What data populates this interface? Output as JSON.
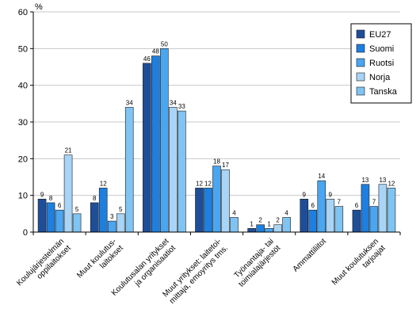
{
  "chart_data": {
    "type": "bar",
    "ylabel": "%",
    "ylim": [
      0,
      60
    ],
    "yticks": [
      0,
      10,
      20,
      30,
      40,
      50,
      60
    ],
    "grid": true,
    "legend_position": "top-right",
    "categories": [
      [
        "Koulujärjestelmän",
        "oppilaitokset"
      ],
      [
        "Muut koulutus-",
        "laitokset"
      ],
      [
        "Koulutusalan yritykset",
        "ja organisaatiot"
      ],
      [
        "Muut yritykset: laitetoi-",
        "mittaja, emoyritys tms."
      ],
      [
        "Työnantaja- tai",
        "toimialajärjestöt"
      ],
      [
        "Ammattiliitot"
      ],
      [
        "Muut koulutuksen",
        "tarjoajat"
      ]
    ],
    "series": [
      {
        "name": "EU27",
        "color": "#1f4e99",
        "values": [
          9,
          8,
          46,
          12,
          1,
          9,
          6
        ]
      },
      {
        "name": "Suomi",
        "color": "#1d7fe0",
        "values": [
          8,
          12,
          48,
          12,
          2,
          6,
          13
        ]
      },
      {
        "name": "Ruotsi",
        "color": "#4aa6f0",
        "values": [
          6,
          3,
          50,
          18,
          1,
          14,
          7
        ]
      },
      {
        "name": "Norja",
        "color": "#a9d4f5",
        "values": [
          21,
          5,
          34,
          17,
          2,
          9,
          13
        ]
      },
      {
        "name": "Tanska",
        "color": "#7fc4f2",
        "values": [
          5,
          34,
          33,
          4,
          4,
          7,
          12
        ]
      }
    ]
  }
}
